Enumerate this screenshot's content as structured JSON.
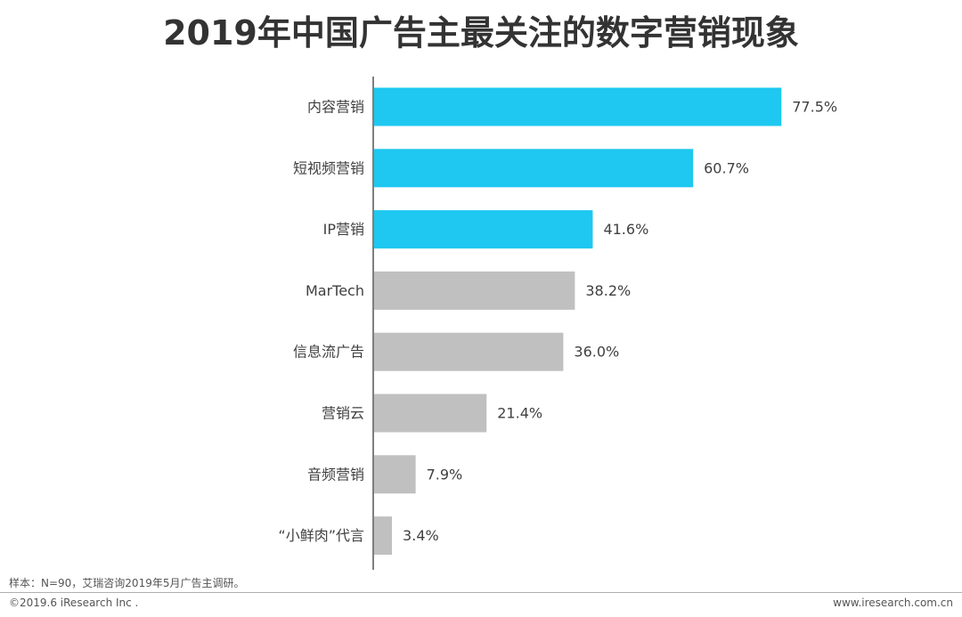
{
  "chart_data": {
    "type": "bar",
    "orientation": "horizontal",
    "title": "2019年中国广告主最关注的数字营销现象",
    "categories": [
      "内容营销",
      "短视频营销",
      "IP营销",
      "MarTech",
      "信息流广告",
      "营销云",
      "音频营销",
      "“小鲜肉”代言"
    ],
    "values": [
      77.5,
      60.7,
      41.6,
      38.2,
      36.0,
      21.4,
      7.9,
      3.4
    ],
    "value_labels": [
      "77.5%",
      "60.7%",
      "41.6%",
      "38.2%",
      "36.0%",
      "21.4%",
      "7.9%",
      "3.4%"
    ],
    "unit": "%",
    "xlim": [
      0,
      100
    ],
    "grid": false,
    "highlight_count": 3,
    "colors": {
      "highlight": "#1ec8f0",
      "default": "#c0c0c0",
      "axis": "#555555",
      "label_text": "#404040"
    }
  },
  "footer": {
    "note": "样本：N=90，艾瑞咨询2019年5月广告主调研。",
    "copyright": "©2019.6 iResearch Inc .",
    "website": "www.iresearch.com.cn"
  }
}
